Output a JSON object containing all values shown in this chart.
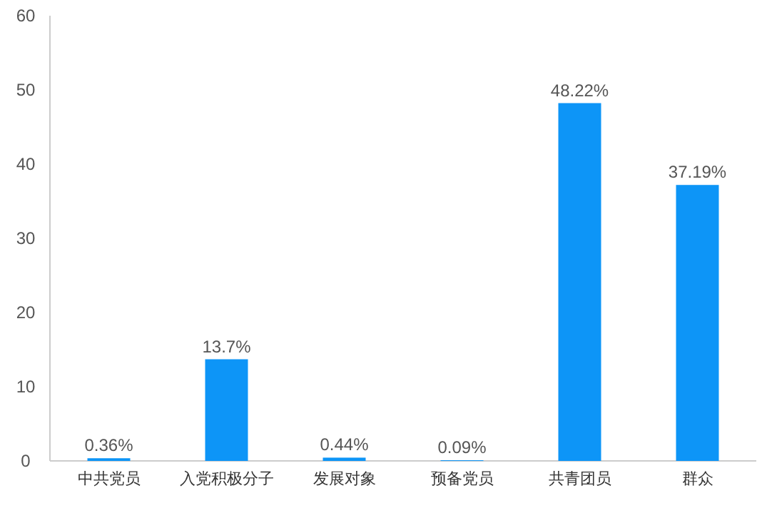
{
  "chart_data": {
    "type": "bar",
    "categories": [
      "中共党员",
      "入党积极分子",
      "发展对象",
      "预备党员",
      "共青团员",
      "群众"
    ],
    "values": [
      0.36,
      13.7,
      0.44,
      0.09,
      48.22,
      37.19
    ],
    "value_labels": [
      "0.36%",
      "13.7%",
      "0.44%",
      "0.09%",
      "48.22%",
      "37.19%"
    ],
    "color": "#0d95f7",
    "ylim": [
      0,
      60
    ],
    "yticks": [
      0,
      10,
      20,
      30,
      40,
      50,
      60
    ]
  }
}
